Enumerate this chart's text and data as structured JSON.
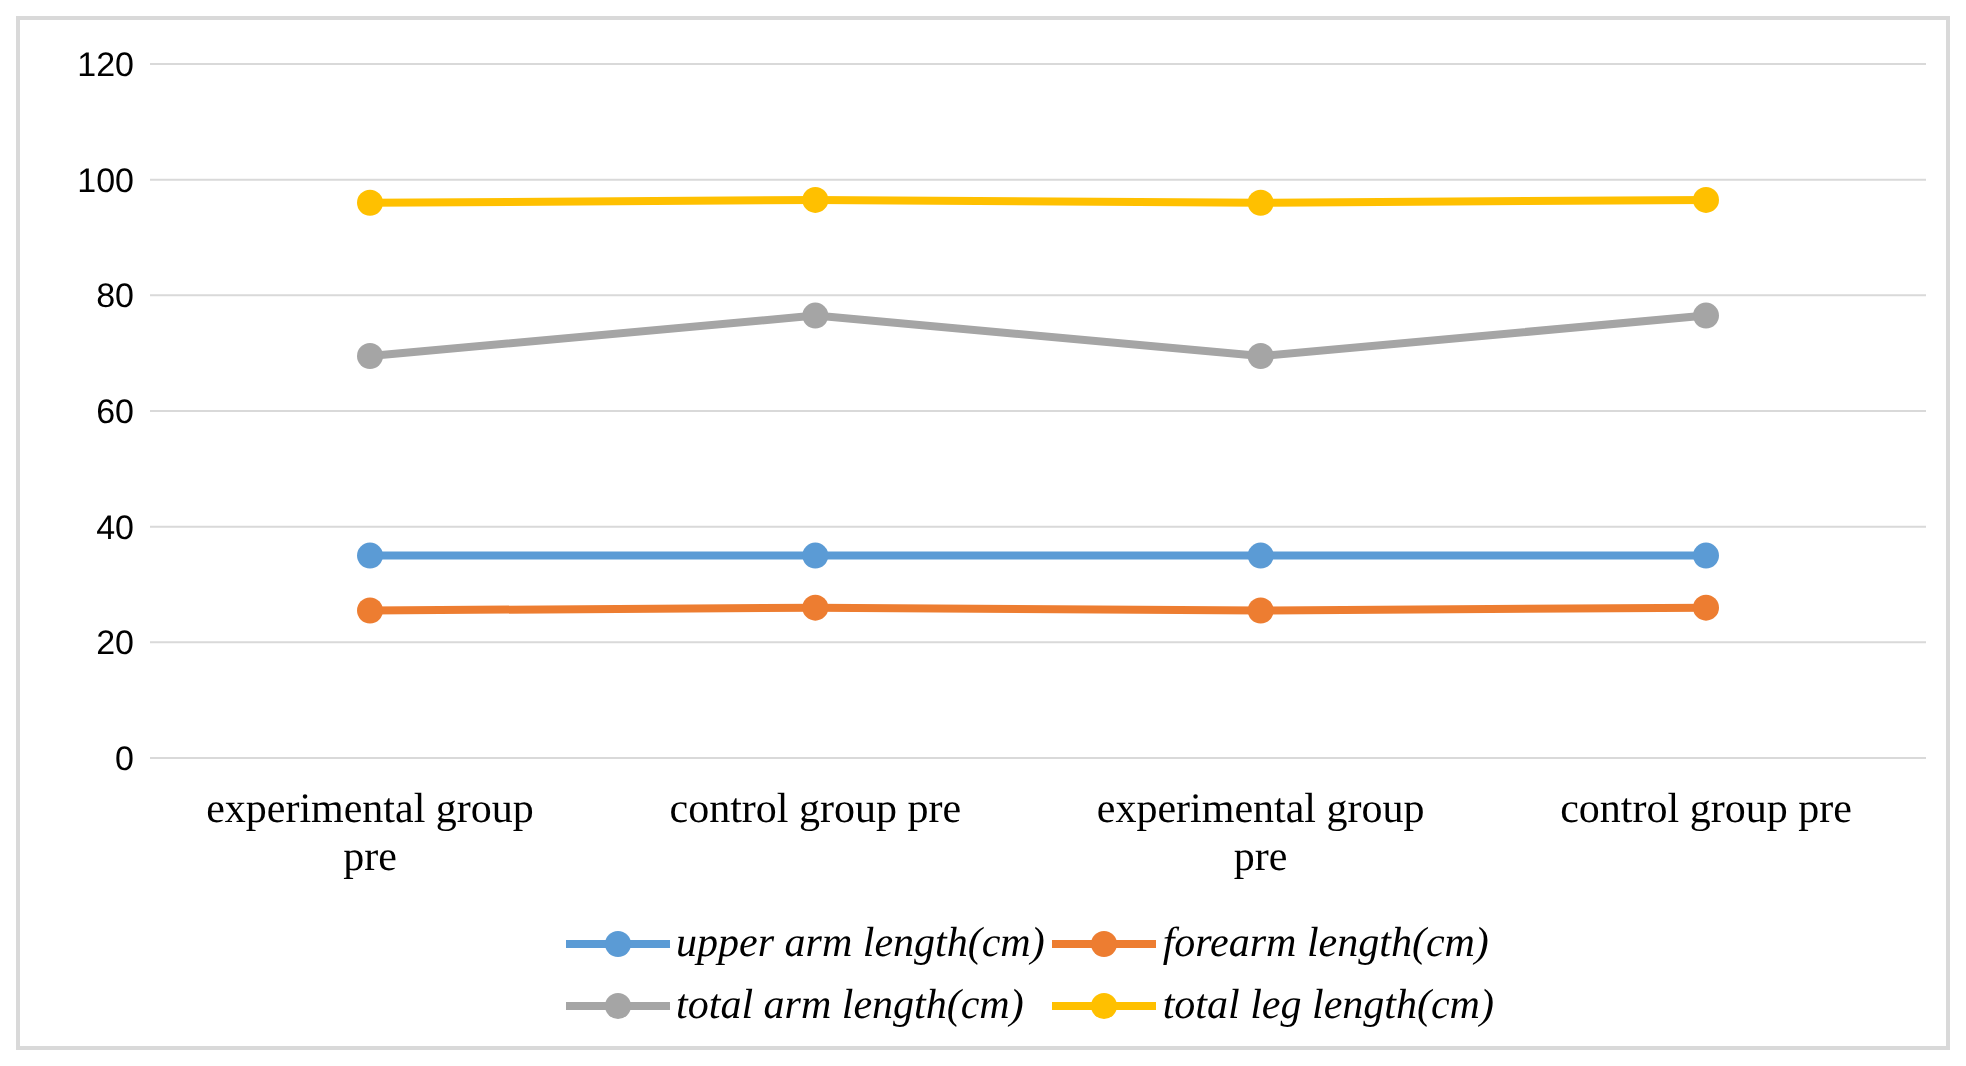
{
  "chart_data": {
    "type": "line",
    "categories": [
      "experimental group pre",
      "control group pre",
      "experimental group pre",
      "control group pre"
    ],
    "series": [
      {
        "name": "upper arm length(cm)",
        "color": "#5b9bd5",
        "values": [
          35,
          35,
          35,
          35
        ]
      },
      {
        "name": "forearm length(cm)",
        "color": "#ed7d31",
        "values": [
          25.5,
          26,
          25.5,
          26
        ]
      },
      {
        "name": "total arm length(cm)",
        "color": "#a5a5a5",
        "values": [
          69.5,
          76.5,
          69.5,
          76.5
        ]
      },
      {
        "name": "total leg length(cm)",
        "color": "#ffc000",
        "values": [
          96,
          96.5,
          96,
          96.5
        ]
      }
    ],
    "ylim": [
      0,
      120
    ],
    "yticks": [
      0,
      20,
      40,
      60,
      80,
      100,
      120
    ],
    "grid": "y",
    "legend": "bottom",
    "marker": "circle",
    "line_style": "solid"
  }
}
